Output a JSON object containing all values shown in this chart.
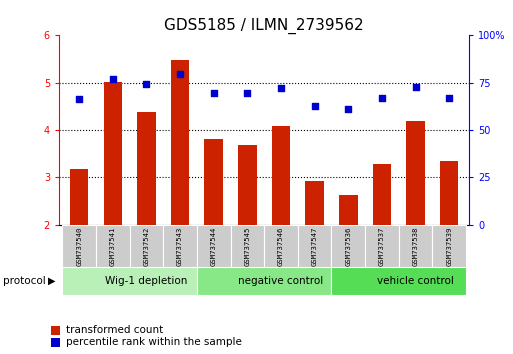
{
  "title": "GDS5185 / ILMN_2739562",
  "samples": [
    "GSM737540",
    "GSM737541",
    "GSM737542",
    "GSM737543",
    "GSM737544",
    "GSM737545",
    "GSM737546",
    "GSM737547",
    "GSM737536",
    "GSM737537",
    "GSM737538",
    "GSM737539"
  ],
  "transformed_count": [
    3.18,
    5.02,
    4.38,
    5.47,
    3.82,
    3.68,
    4.08,
    2.92,
    2.62,
    3.28,
    4.2,
    3.35
  ],
  "percentile_rank": [
    4.65,
    5.08,
    4.97,
    5.18,
    4.78,
    4.78,
    4.88,
    4.5,
    4.45,
    4.68,
    4.9,
    4.68
  ],
  "groups": [
    {
      "label": "Wig-1 depletion",
      "start": 0,
      "end": 4,
      "color": "#b8f0b8"
    },
    {
      "label": "negative control",
      "start": 4,
      "end": 8,
      "color": "#88e888"
    },
    {
      "label": "vehicle control",
      "start": 8,
      "end": 12,
      "color": "#55dd55"
    }
  ],
  "ylim": [
    2,
    6
  ],
  "yticks": [
    2,
    3,
    4,
    5,
    6
  ],
  "y2ticks": [
    0,
    25,
    50,
    75,
    100
  ],
  "bar_color": "#cc2200",
  "dot_color": "#0000cc",
  "bar_width": 0.55,
  "title_fontsize": 11,
  "tick_fontsize": 7,
  "label_fontsize": 8,
  "sample_box_color": "#cccccc",
  "protocol_arrow": "▶"
}
